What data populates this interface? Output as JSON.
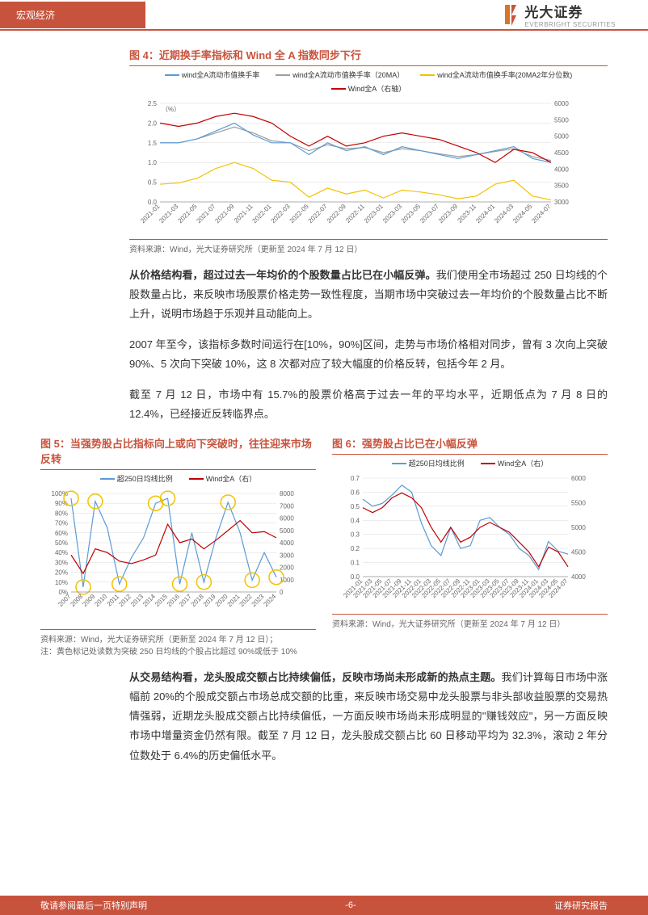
{
  "header": {
    "section": "宏观经济",
    "brand": "光大证券",
    "sub_brand": "EVERBRIGHT SECURITIES"
  },
  "fig4": {
    "label": "图 4：近期换手率指标和 Wind 全 A 指数同步下行",
    "source": "资料来源：Wind，光大证券研究所（更新至 2024 年 7 月 12 日）",
    "legend": [
      {
        "label": "wind全A流动市值换手率",
        "color": "#5b9bd5"
      },
      {
        "label": "wind全A流动市值换手率（20MA）",
        "color": "#9e9e9e"
      },
      {
        "label": "wind全A流动市值换手率(20MA2年分位数)",
        "color": "#f2c200"
      },
      {
        "label": "Wind全A（右轴）",
        "color": "#c00000"
      }
    ],
    "left_ylim": [
      0,
      2.5
    ],
    "left_ytick_step": 0.5,
    "left_unit": "（%）",
    "right_ylim": [
      3000,
      6000
    ],
    "right_ytick_step": 500,
    "x_categories": [
      "2021-01",
      "2021-03",
      "2021-05",
      "2021-07",
      "2021-09",
      "2021-11",
      "2022-01",
      "2022-03",
      "2022-05",
      "2022-07",
      "2022-09",
      "2022-11",
      "2023-01",
      "2023-03",
      "2023-05",
      "2023-07",
      "2023-09",
      "2023-11",
      "2024-01",
      "2024-03",
      "2024-05",
      "2024-07"
    ],
    "series_blue": [
      1.5,
      1.5,
      1.6,
      1.8,
      2.0,
      1.7,
      1.5,
      1.5,
      1.2,
      1.5,
      1.3,
      1.4,
      1.2,
      1.4,
      1.3,
      1.2,
      1.1,
      1.2,
      1.3,
      1.4,
      1.1,
      1.0
    ],
    "series_grey": [
      1.5,
      1.5,
      1.6,
      1.75,
      1.9,
      1.75,
      1.55,
      1.5,
      1.3,
      1.45,
      1.35,
      1.38,
      1.25,
      1.35,
      1.3,
      1.22,
      1.15,
      1.2,
      1.28,
      1.35,
      1.15,
      1.05
    ],
    "series_yellow": [
      0.45,
      0.48,
      0.6,
      0.85,
      1.0,
      0.85,
      0.55,
      0.5,
      0.12,
      0.35,
      0.2,
      0.3,
      0.1,
      0.3,
      0.25,
      0.18,
      0.08,
      0.15,
      0.45,
      0.55,
      0.15,
      0.05
    ],
    "series_red": [
      5400,
      5300,
      5400,
      5600,
      5700,
      5600,
      5400,
      5000,
      4700,
      5000,
      4700,
      4800,
      5000,
      5100,
      5000,
      4900,
      4700,
      4500,
      4200,
      4600,
      4500,
      4200
    ],
    "grid_color": "#d9d9d9",
    "bg": "#ffffff",
    "line_width": 1.2,
    "axis_fontsize": 8,
    "label_fontsize": 9
  },
  "para1": "从价格结构看，超过过去一年均价的个股数量占比已在小幅反弹。",
  "para1_body": "我们使用全市场超过 250 日均线的个股数量占比，来反映市场股票价格走势一致性程度，当期市场中突破过去一年均价的个股数量占比不断上升，说明市场趋于乐观并且动能向上。",
  "para2": "2007 年至今，该指标多数时间运行在[10%，90%]区间，走势与市场价格相对同步，曾有 3 次向上突破 90%、5 次向下突破 10%，这 8 次都对应了较大幅度的价格反转，包括今年 2 月。",
  "para3": "截至 7 月 12 日，市场中有 15.7%的股票价格高于过去一年的平均水平，近期低点为 7 月 8 日的 12.4%，已经接近反转临界点。",
  "fig5": {
    "label": "图 5：当强势股占比指标向上或向下突破时，往往迎来市场反转",
    "source": "资料来源：Wind，光大证券研究所（更新至 2024 年 7 月 12 日）；",
    "note": "注：黄色标记处读数为突破 250 日均线的个股占比超过 90%或低于 10%",
    "legend": [
      {
        "label": "超250日均线比例",
        "color": "#5b9bd5"
      },
      {
        "label": "Wind全A（右）",
        "color": "#c00000"
      }
    ],
    "left_ylim": [
      0,
      100
    ],
    "left_ytick_step": 10,
    "left_fmt": "%",
    "right_ylim": [
      0,
      8000
    ],
    "right_ytick_step": 1000,
    "x_categories": [
      "2007",
      "2008",
      "2009",
      "2010",
      "2011",
      "2012",
      "2013",
      "2014",
      "2015",
      "2016",
      "2017",
      "2018",
      "2019",
      "2020",
      "2021",
      "2022",
      "2023",
      "2024"
    ],
    "series_blue": [
      95,
      5,
      92,
      65,
      8,
      35,
      55,
      90,
      95,
      8,
      60,
      10,
      55,
      91,
      60,
      12,
      40,
      15
    ],
    "series_red": [
      3000,
      1500,
      3500,
      3200,
      2500,
      2300,
      2600,
      3000,
      5500,
      4000,
      4300,
      3500,
      4200,
      5000,
      5800,
      4800,
      4900,
      4400
    ],
    "circle_idx": [
      0,
      1,
      2,
      4,
      7,
      8,
      9,
      11,
      13,
      15,
      17
    ],
    "circle_color": "#f2c200",
    "grid_color": "#d9d9d9",
    "line_width": 1.2,
    "axis_fontsize": 8
  },
  "fig6": {
    "label": "图 6：强势股占比已在小幅反弹",
    "source": "资料来源：Wind，光大证券研究所（更新至 2024 年 7 月 12 日）",
    "legend": [
      {
        "label": "超250日均线比例",
        "color": "#5b9bd5"
      },
      {
        "label": "Wind全A（右）",
        "color": "#c00000"
      }
    ],
    "left_ylim": [
      0,
      0.7
    ],
    "left_ytick_step": 0.1,
    "right_ylim": [
      4000,
      6000
    ],
    "right_ytick_step": 500,
    "x_categories": [
      "2021-01",
      "2021-03",
      "2021-05",
      "2021-07",
      "2021-09",
      "2021-11",
      "2022-01",
      "2022-03",
      "2022-05",
      "2022-07",
      "2022-09",
      "2022-11",
      "2023-01",
      "2023-03",
      "2023-05",
      "2023-07",
      "2023-09",
      "2023-11",
      "2024-01",
      "2024-03",
      "2024-05",
      "2024-07"
    ],
    "series_blue": [
      0.55,
      0.5,
      0.52,
      0.58,
      0.65,
      0.6,
      0.38,
      0.22,
      0.15,
      0.35,
      0.2,
      0.22,
      0.4,
      0.42,
      0.35,
      0.3,
      0.2,
      0.15,
      0.05,
      0.25,
      0.18,
      0.16
    ],
    "series_red": [
      5400,
      5300,
      5400,
      5600,
      5700,
      5600,
      5400,
      5000,
      4700,
      5000,
      4700,
      4800,
      5000,
      5100,
      5000,
      4900,
      4700,
      4500,
      4200,
      4600,
      4500,
      4200
    ],
    "grid_color": "#d9d9d9",
    "line_width": 1.2,
    "axis_fontsize": 8
  },
  "para4": "从交易结构看，龙头股成交额占比持续偏低，反映市场尚未形成新的热点主题。",
  "para4_body": "我们计算每日市场中涨幅前 20%的个股成交额占市场总成交额的比重，来反映市场交易中龙头股票与非头部收益股票的交易热情强弱，近期龙头股成交额占比持续偏低，一方面反映市场尚未形成明显的\"赚钱效应\"，另一方面反映市场中增量资金仍然有限。截至 7 月 12 日，龙头股成交额占比 60 日移动平均为 32.3%，滚动 2 年分位数处于 6.4%的历史偏低水平。",
  "footer": {
    "left": "敬请参阅最后一页特别声明",
    "center": "-6-",
    "right": "证券研究报告"
  }
}
